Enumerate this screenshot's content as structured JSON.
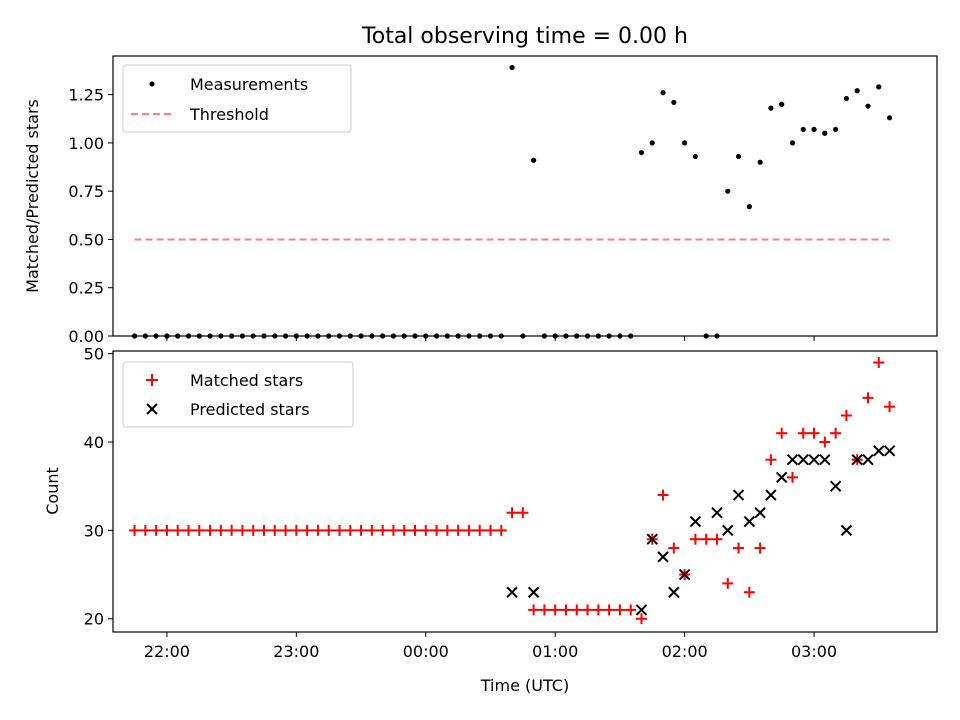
{
  "figure": {
    "title": "Total observing time = 0.00 h",
    "xlabel": "Time (UTC)"
  },
  "colors": {
    "measurement": "#000000",
    "threshold": "#ff7f7f",
    "matched": "#ff0000",
    "predicted": "#000000"
  },
  "chart_data": [
    {
      "type": "scatter",
      "panel": "top",
      "ylabel": "Matched/Predicted stars",
      "ylim": [
        0,
        1.45
      ],
      "yticks": [
        0.0,
        0.25,
        0.5,
        0.75,
        1.0,
        1.25
      ],
      "ytick_labels": [
        "0.00",
        "0.25",
        "0.50",
        "0.75",
        "1.00",
        "1.25"
      ],
      "xticks": [
        "22:00",
        "23:00",
        "00:00",
        "01:00",
        "02:00",
        "03:00"
      ],
      "xlim": [
        "21:35",
        "03:57"
      ],
      "legend_position": "top-left",
      "series": [
        {
          "name": "Measurements",
          "kind": "scatter",
          "marker": "dot",
          "x": [
            "21:45",
            "21:50",
            "21:55",
            "22:00",
            "22:05",
            "22:10",
            "22:15",
            "22:20",
            "22:25",
            "22:30",
            "22:35",
            "22:40",
            "22:45",
            "22:50",
            "22:55",
            "23:00",
            "23:05",
            "23:10",
            "23:15",
            "23:20",
            "23:25",
            "23:30",
            "23:35",
            "23:40",
            "23:45",
            "23:50",
            "23:55",
            "00:00",
            "00:05",
            "00:10",
            "00:15",
            "00:20",
            "00:25",
            "00:30",
            "00:35",
            "00:40",
            "00:45",
            "00:50",
            "00:55",
            "01:00",
            "01:05",
            "01:10",
            "01:15",
            "01:20",
            "01:25",
            "01:30",
            "01:35",
            "01:40",
            "01:45",
            "01:50",
            "01:55",
            "02:00",
            "02:05",
            "02:10",
            "02:15",
            "02:20",
            "02:25",
            "02:30",
            "02:35",
            "02:40",
            "02:45",
            "02:50",
            "02:55",
            "03:00",
            "03:05",
            "03:10",
            "03:15",
            "03:20",
            "03:25",
            "03:30",
            "03:35"
          ],
          "y": [
            0,
            0,
            0,
            0,
            0,
            0,
            0,
            0,
            0,
            0,
            0,
            0,
            0,
            0,
            0,
            0,
            0,
            0,
            0,
            0,
            0,
            0,
            0,
            0,
            0,
            0,
            0,
            0,
            0,
            0,
            0,
            0,
            0,
            0,
            0,
            1.39,
            0,
            0.91,
            0,
            0,
            0,
            0,
            0,
            0,
            0,
            0,
            0,
            0.95,
            1.0,
            1.26,
            1.21,
            1.0,
            0.93,
            0,
            0,
            0.75,
            0.93,
            0.67,
            0.9,
            1.18,
            1.2,
            1.0,
            1.07,
            1.07,
            1.05,
            1.07,
            1.23,
            1.27,
            1.19,
            1.29,
            1.13
          ]
        },
        {
          "name": "Threshold",
          "kind": "line",
          "dash": "dashed",
          "x": [
            "21:45",
            "03:35"
          ],
          "y": [
            0.5,
            0.5
          ]
        }
      ]
    },
    {
      "type": "scatter",
      "panel": "bottom",
      "ylabel": "Count",
      "ylim": [
        18.5,
        50.3
      ],
      "yticks": [
        20,
        30,
        40,
        50
      ],
      "ytick_labels": [
        "20",
        "30",
        "40",
        "50"
      ],
      "xticks": [
        "22:00",
        "23:00",
        "00:00",
        "01:00",
        "02:00",
        "03:00"
      ],
      "xtick_labels": [
        "22:00",
        "23:00",
        "00:00",
        "01:00",
        "02:00",
        "03:00"
      ],
      "xlim": [
        "21:35",
        "03:57"
      ],
      "legend_position": "top-left",
      "series": [
        {
          "name": "Matched stars",
          "kind": "scatter",
          "marker": "plus",
          "x": [
            "21:45",
            "21:50",
            "21:55",
            "22:00",
            "22:05",
            "22:10",
            "22:15",
            "22:20",
            "22:25",
            "22:30",
            "22:35",
            "22:40",
            "22:45",
            "22:50",
            "22:55",
            "23:00",
            "23:05",
            "23:10",
            "23:15",
            "23:20",
            "23:25",
            "23:30",
            "23:35",
            "23:40",
            "23:45",
            "23:50",
            "23:55",
            "00:00",
            "00:05",
            "00:10",
            "00:15",
            "00:20",
            "00:25",
            "00:30",
            "00:35",
            "00:40",
            "00:45",
            "00:50",
            "00:55",
            "01:00",
            "01:05",
            "01:10",
            "01:15",
            "01:20",
            "01:25",
            "01:30",
            "01:35",
            "01:40",
            "01:45",
            "01:50",
            "01:55",
            "02:00",
            "02:05",
            "02:10",
            "02:15",
            "02:20",
            "02:25",
            "02:30",
            "02:35",
            "02:40",
            "02:45",
            "02:50",
            "02:55",
            "03:00",
            "03:05",
            "03:10",
            "03:15",
            "03:20",
            "03:25",
            "03:30",
            "03:35"
          ],
          "y": [
            30,
            30,
            30,
            30,
            30,
            30,
            30,
            30,
            30,
            30,
            30,
            30,
            30,
            30,
            30,
            30,
            30,
            30,
            30,
            30,
            30,
            30,
            30,
            30,
            30,
            30,
            30,
            30,
            30,
            30,
            30,
            30,
            30,
            30,
            30,
            32,
            32,
            21,
            21,
            21,
            21,
            21,
            21,
            21,
            21,
            21,
            21,
            20,
            29,
            34,
            28,
            25,
            29,
            29,
            29,
            24,
            28,
            23,
            28,
            38,
            41,
            36,
            41,
            41,
            40,
            41,
            43,
            38,
            45,
            49,
            44
          ]
        },
        {
          "name": "Predicted stars",
          "kind": "scatter",
          "marker": "x",
          "x": [
            "00:40",
            "00:50",
            "01:40",
            "01:45",
            "01:50",
            "01:55",
            "02:00",
            "02:05",
            "02:15",
            "02:20",
            "02:25",
            "02:30",
            "02:35",
            "02:40",
            "02:45",
            "02:50",
            "02:55",
            "03:00",
            "03:05",
            "03:10",
            "03:15",
            "03:20",
            "03:25",
            "03:30",
            "03:35"
          ],
          "y": [
            23,
            23,
            21,
            29,
            27,
            23,
            25,
            31,
            32,
            30,
            34,
            31,
            32,
            34,
            36,
            38,
            38,
            38,
            38,
            35,
            30,
            38,
            38,
            39,
            39
          ]
        }
      ]
    }
  ]
}
